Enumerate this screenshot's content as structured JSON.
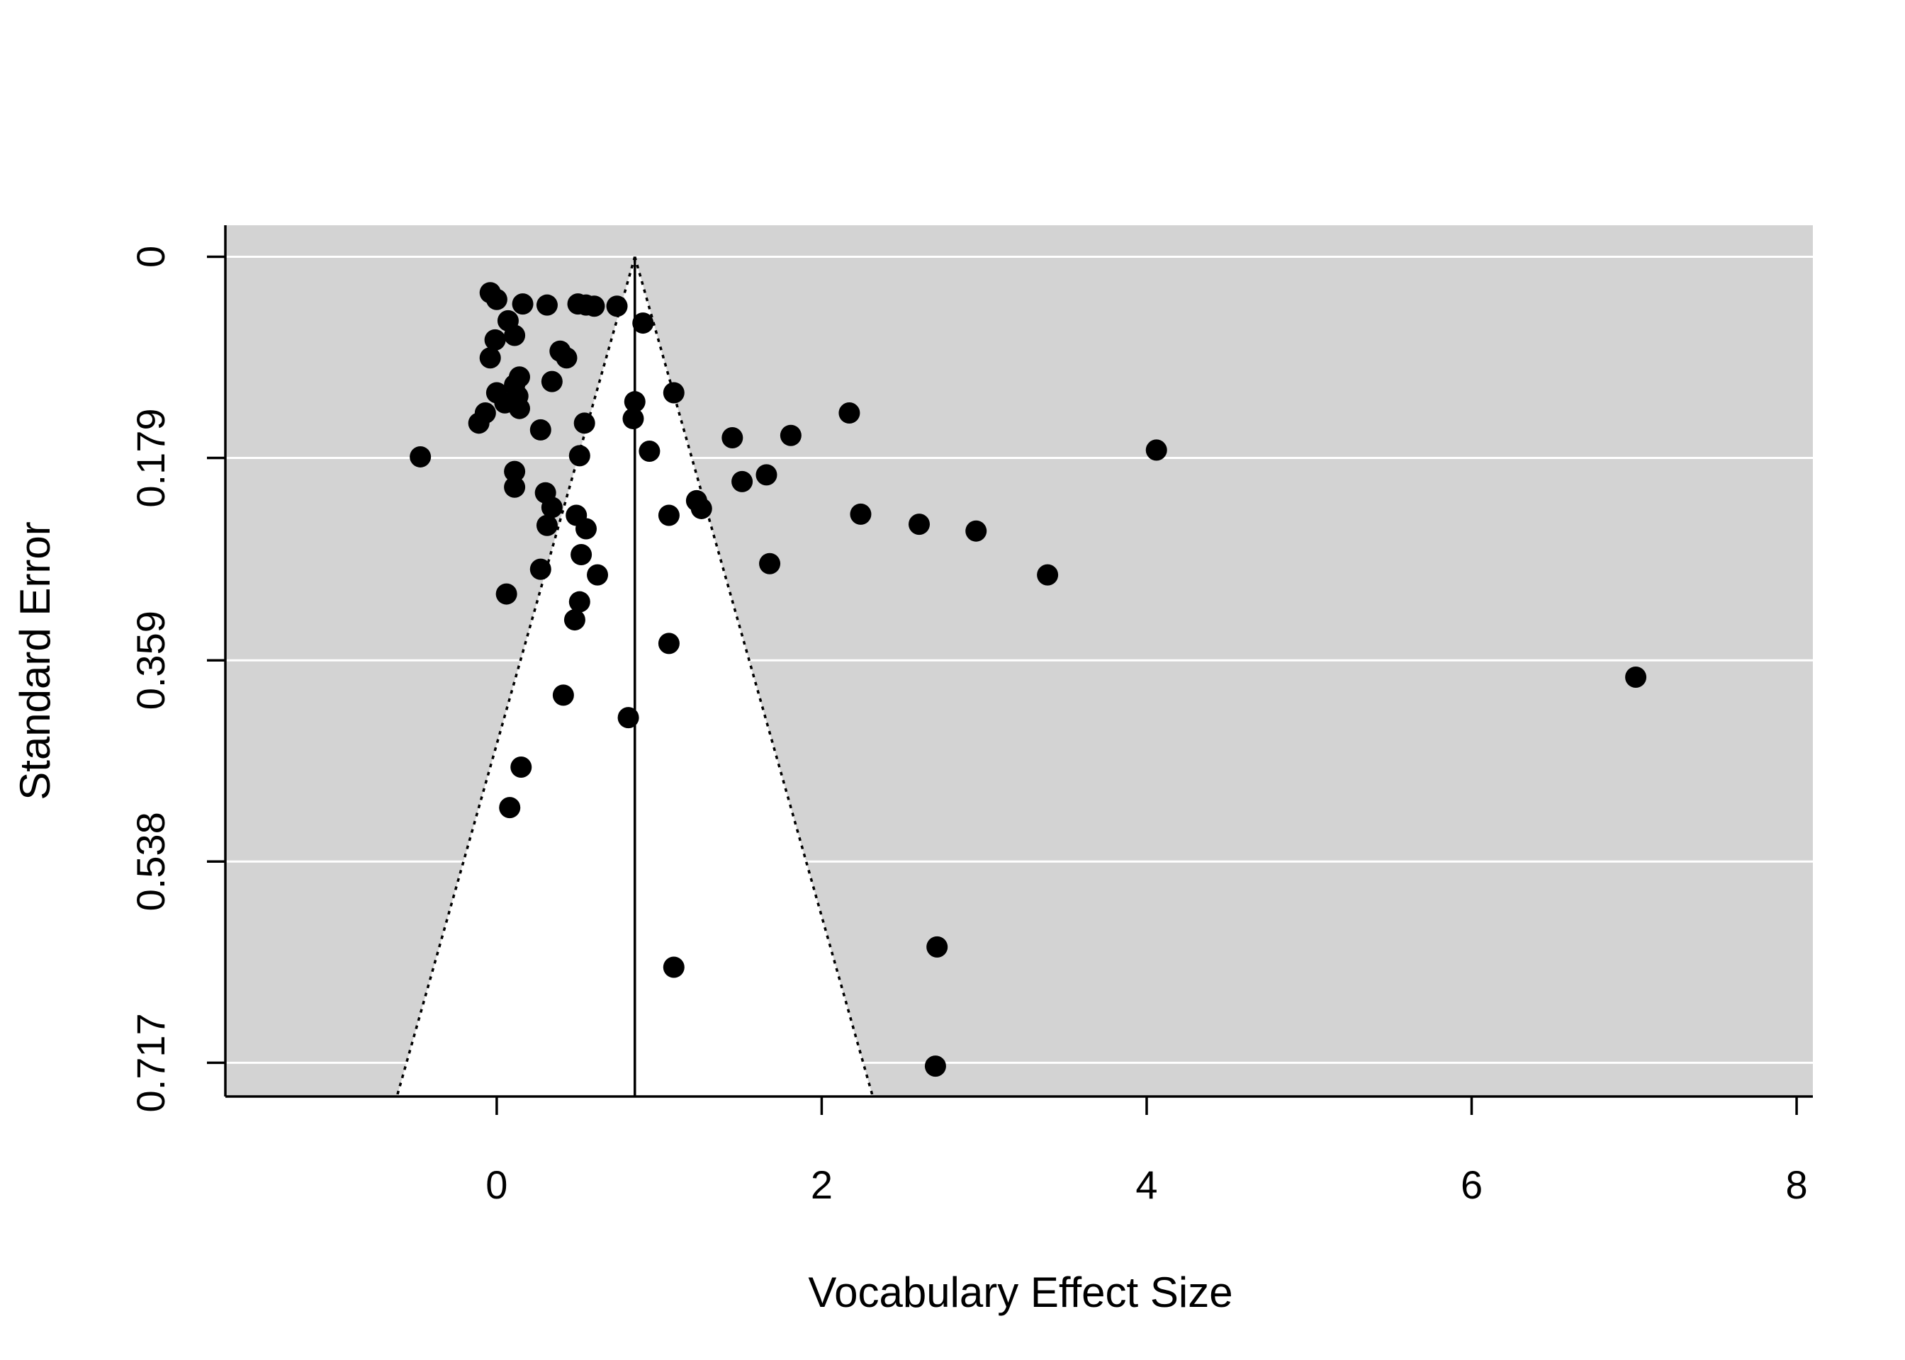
{
  "chart_data": {
    "type": "scatter",
    "subtype": "funnel-plot",
    "title": "",
    "xlabel": "Vocabulary Effect Size",
    "ylabel": "Standard Error",
    "xlim": [
      -1.67,
      8.1
    ],
    "ylim": [
      0.747,
      -0.028
    ],
    "y_reversed": true,
    "x_ticks": [
      0,
      2,
      4,
      6,
      8
    ],
    "x_tick_labels": [
      "0",
      "2",
      "4",
      "6",
      "8"
    ],
    "y_ticks": [
      0,
      0.179,
      0.359,
      0.538,
      0.717
    ],
    "y_tick_labels": [
      "0",
      "0.179",
      "0.359",
      "0.538",
      "0.717"
    ],
    "grid": "horizontal",
    "background_color": "#d3d3d3",
    "funnel_fill": "#ffffff",
    "point_color": "#000000",
    "summary_estimate": 0.85,
    "funnel_multiplier": 1.96,
    "points": [
      {
        "x": -0.04,
        "y": 0.032
      },
      {
        "x": 0.0,
        "y": 0.038
      },
      {
        "x": 0.16,
        "y": 0.042
      },
      {
        "x": 0.31,
        "y": 0.043
      },
      {
        "x": 0.5,
        "y": 0.042
      },
      {
        "x": 0.55,
        "y": 0.043
      },
      {
        "x": 0.6,
        "y": 0.044
      },
      {
        "x": 0.74,
        "y": 0.044
      },
      {
        "x": 0.9,
        "y": 0.059
      },
      {
        "x": 0.07,
        "y": 0.057
      },
      {
        "x": 0.11,
        "y": 0.07
      },
      {
        "x": -0.01,
        "y": 0.074
      },
      {
        "x": -0.04,
        "y": 0.09
      },
      {
        "x": 0.39,
        "y": 0.084
      },
      {
        "x": 0.43,
        "y": 0.09
      },
      {
        "x": 0.14,
        "y": 0.107
      },
      {
        "x": 0.11,
        "y": 0.114
      },
      {
        "x": 0.34,
        "y": 0.111
      },
      {
        "x": 0.0,
        "y": 0.121
      },
      {
        "x": 0.13,
        "y": 0.124
      },
      {
        "x": 0.05,
        "y": 0.13
      },
      {
        "x": 0.14,
        "y": 0.135
      },
      {
        "x": -0.07,
        "y": 0.139
      },
      {
        "x": -0.11,
        "y": 0.148
      },
      {
        "x": 0.27,
        "y": 0.154
      },
      {
        "x": 0.54,
        "y": 0.148
      },
      {
        "x": 0.85,
        "y": 0.129
      },
      {
        "x": 0.84,
        "y": 0.144
      },
      {
        "x": 1.09,
        "y": 0.121
      },
      {
        "x": 2.17,
        "y": 0.139
      },
      {
        "x": 1.45,
        "y": 0.161
      },
      {
        "x": 1.81,
        "y": 0.159
      },
      {
        "x": 0.94,
        "y": 0.173
      },
      {
        "x": 0.51,
        "y": 0.177
      },
      {
        "x": -0.47,
        "y": 0.178
      },
      {
        "x": 4.06,
        "y": 0.172
      },
      {
        "x": 0.11,
        "y": 0.191
      },
      {
        "x": 0.11,
        "y": 0.205
      },
      {
        "x": 1.51,
        "y": 0.2
      },
      {
        "x": 1.66,
        "y": 0.194
      },
      {
        "x": 0.3,
        "y": 0.21
      },
      {
        "x": 0.34,
        "y": 0.223
      },
      {
        "x": 1.23,
        "y": 0.217
      },
      {
        "x": 1.26,
        "y": 0.224
      },
      {
        "x": 0.49,
        "y": 0.23
      },
      {
        "x": 1.06,
        "y": 0.23
      },
      {
        "x": 0.31,
        "y": 0.239
      },
      {
        "x": 0.55,
        "y": 0.242
      },
      {
        "x": 2.24,
        "y": 0.229
      },
      {
        "x": 2.6,
        "y": 0.238
      },
      {
        "x": 2.95,
        "y": 0.244
      },
      {
        "x": 0.52,
        "y": 0.265
      },
      {
        "x": 0.27,
        "y": 0.278
      },
      {
        "x": 0.62,
        "y": 0.283
      },
      {
        "x": 1.68,
        "y": 0.273
      },
      {
        "x": 3.39,
        "y": 0.283
      },
      {
        "x": 0.06,
        "y": 0.3
      },
      {
        "x": 0.51,
        "y": 0.307
      },
      {
        "x": 0.48,
        "y": 0.323
      },
      {
        "x": 1.06,
        "y": 0.344
      },
      {
        "x": 7.01,
        "y": 0.374
      },
      {
        "x": 0.41,
        "y": 0.39
      },
      {
        "x": 0.81,
        "y": 0.41
      },
      {
        "x": 0.15,
        "y": 0.454
      },
      {
        "x": 0.08,
        "y": 0.49
      },
      {
        "x": 2.71,
        "y": 0.614
      },
      {
        "x": 1.09,
        "y": 0.632
      },
      {
        "x": 2.7,
        "y": 0.72
      }
    ]
  }
}
